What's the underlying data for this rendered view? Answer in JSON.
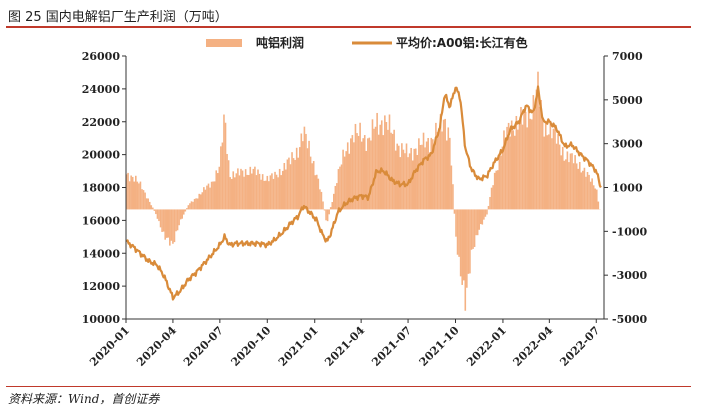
{
  "figure": {
    "title": "图 25 国内电解铝厂生产利润（万吨）",
    "source": "资料来源：Wind，首创证券"
  },
  "colors": {
    "bar": "#f4b183",
    "line": "#d98b3a",
    "rule": "#c0392b",
    "axis": "#333333"
  },
  "chart_data": {
    "type": "bar+line",
    "title": "",
    "xlabel": "",
    "ylabel": "",
    "grid": false,
    "legend_position": "top",
    "x_tick_labels": [
      "2020-01",
      "2020-04",
      "2020-07",
      "2020-10",
      "2021-01",
      "2021-04",
      "2021-07",
      "2021-10",
      "2022-01",
      "2022-04",
      "2022-07"
    ],
    "x_range": [
      "2020-01",
      "2022-07"
    ],
    "left_axis": {
      "series": "平均价:A00铝:长江有色",
      "ylim": [
        10000,
        26000
      ],
      "ticks": [
        "10000",
        "12000",
        "14000",
        "16000",
        "18000",
        "20000",
        "22000",
        "24000",
        "26000"
      ]
    },
    "right_axis": {
      "series": "吨铝利润",
      "ylim": [
        -5000,
        7000
      ],
      "ticks": [
        "-5000",
        "-3000",
        "-1000",
        "1000",
        "3000",
        "5000",
        "7000"
      ]
    },
    "series": [
      {
        "name": "吨铝利润",
        "kind": "bar",
        "axis": "right",
        "points": [
          [
            "2020-01-02",
            1600
          ],
          [
            "2020-01-15",
            1500
          ],
          [
            "2020-02-01",
            1000
          ],
          [
            "2020-02-15",
            400
          ],
          [
            "2020-03-01",
            -300
          ],
          [
            "2020-03-15",
            -1300
          ],
          [
            "2020-04-01",
            -1500
          ],
          [
            "2020-04-15",
            -600
          ],
          [
            "2020-05-01",
            200
          ],
          [
            "2020-05-15",
            500
          ],
          [
            "2020-06-01",
            900
          ],
          [
            "2020-06-15",
            1200
          ],
          [
            "2020-07-01",
            2000
          ],
          [
            "2020-07-10",
            4200
          ],
          [
            "2020-07-20",
            1600
          ],
          [
            "2020-08-01",
            1600
          ],
          [
            "2020-08-15",
            1700
          ],
          [
            "2020-09-01",
            1800
          ],
          [
            "2020-09-15",
            1600
          ],
          [
            "2020-10-01",
            1400
          ],
          [
            "2020-10-15",
            1500
          ],
          [
            "2020-11-01",
            1900
          ],
          [
            "2020-11-15",
            2200
          ],
          [
            "2020-12-01",
            2800
          ],
          [
            "2020-12-10",
            3500
          ],
          [
            "2020-12-25",
            2500
          ],
          [
            "2021-01-05",
            1600
          ],
          [
            "2021-01-15",
            600
          ],
          [
            "2021-01-25",
            -700
          ],
          [
            "2021-02-01",
            100
          ],
          [
            "2021-02-15",
            1500
          ],
          [
            "2021-03-01",
            2800
          ],
          [
            "2021-03-15",
            3200
          ],
          [
            "2021-04-01",
            3600
          ],
          [
            "2021-04-15",
            3000
          ],
          [
            "2021-05-01",
            4000
          ],
          [
            "2021-05-15",
            4000
          ],
          [
            "2021-06-01",
            3500
          ],
          [
            "2021-06-15",
            2800
          ],
          [
            "2021-07-01",
            2500
          ],
          [
            "2021-07-15",
            2800
          ],
          [
            "2021-08-01",
            3000
          ],
          [
            "2021-08-15",
            3200
          ],
          [
            "2021-09-01",
            3700
          ],
          [
            "2021-09-10",
            4100
          ],
          [
            "2021-09-20",
            3400
          ],
          [
            "2021-10-01",
            -1000
          ],
          [
            "2021-10-10",
            -2800
          ],
          [
            "2021-10-20",
            -4400
          ],
          [
            "2021-11-01",
            -1900
          ],
          [
            "2021-11-15",
            -1000
          ],
          [
            "2021-12-01",
            -200
          ],
          [
            "2021-12-15",
            1500
          ],
          [
            "2022-01-01",
            3000
          ],
          [
            "2022-01-15",
            3800
          ],
          [
            "2022-02-01",
            4000
          ],
          [
            "2022-02-15",
            4200
          ],
          [
            "2022-03-01",
            4800
          ],
          [
            "2022-03-10",
            5500
          ],
          [
            "2022-03-20",
            3800
          ],
          [
            "2022-04-01",
            3800
          ],
          [
            "2022-04-15",
            3200
          ],
          [
            "2022-05-01",
            2500
          ],
          [
            "2022-05-15",
            2300
          ],
          [
            "2022-06-01",
            2000
          ],
          [
            "2022-06-15",
            1500
          ],
          [
            "2022-07-01",
            1000
          ],
          [
            "2022-07-10",
            -300
          ]
        ]
      },
      {
        "name": "平均价:A00铝:长江有色",
        "kind": "line",
        "axis": "left",
        "points": [
          [
            "2020-01-02",
            14700
          ],
          [
            "2020-01-15",
            14400
          ],
          [
            "2020-02-01",
            13900
          ],
          [
            "2020-02-15",
            13500
          ],
          [
            "2020-03-01",
            13300
          ],
          [
            "2020-03-15",
            12600
          ],
          [
            "2020-04-01",
            11300
          ],
          [
            "2020-04-15",
            11700
          ],
          [
            "2020-05-01",
            12400
          ],
          [
            "2020-05-15",
            12800
          ],
          [
            "2020-06-01",
            13400
          ],
          [
            "2020-06-15",
            13900
          ],
          [
            "2020-07-01",
            14500
          ],
          [
            "2020-07-10",
            15000
          ],
          [
            "2020-07-20",
            14500
          ],
          [
            "2020-08-01",
            14600
          ],
          [
            "2020-08-15",
            14600
          ],
          [
            "2020-09-01",
            14600
          ],
          [
            "2020-09-15",
            14600
          ],
          [
            "2020-10-01",
            14500
          ],
          [
            "2020-10-15",
            14800
          ],
          [
            "2020-11-01",
            15300
          ],
          [
            "2020-11-15",
            15800
          ],
          [
            "2020-12-01",
            16300
          ],
          [
            "2020-12-10",
            16900
          ],
          [
            "2020-12-25",
            16400
          ],
          [
            "2021-01-05",
            16000
          ],
          [
            "2021-01-15",
            15200
          ],
          [
            "2021-01-25",
            14700
          ],
          [
            "2021-02-01",
            15200
          ],
          [
            "2021-02-15",
            16500
          ],
          [
            "2021-03-01",
            17000
          ],
          [
            "2021-03-15",
            17300
          ],
          [
            "2021-04-01",
            17500
          ],
          [
            "2021-04-15",
            17400
          ],
          [
            "2021-05-01",
            19000
          ],
          [
            "2021-05-15",
            19000
          ],
          [
            "2021-06-01",
            18400
          ],
          [
            "2021-06-15",
            18200
          ],
          [
            "2021-07-01",
            18200
          ],
          [
            "2021-07-15",
            19000
          ],
          [
            "2021-08-01",
            19700
          ],
          [
            "2021-08-15",
            20000
          ],
          [
            "2021-09-01",
            21700
          ],
          [
            "2021-09-10",
            23700
          ],
          [
            "2021-09-20",
            22900
          ],
          [
            "2021-10-01",
            24100
          ],
          [
            "2021-10-10",
            23500
          ],
          [
            "2021-10-20",
            20400
          ],
          [
            "2021-11-01",
            19100
          ],
          [
            "2021-11-15",
            18500
          ],
          [
            "2021-12-01",
            18700
          ],
          [
            "2021-12-15",
            19500
          ],
          [
            "2022-01-01",
            20300
          ],
          [
            "2022-01-15",
            21500
          ],
          [
            "2022-02-01",
            22000
          ],
          [
            "2022-02-15",
            23000
          ],
          [
            "2022-03-01",
            22500
          ],
          [
            "2022-03-10",
            24000
          ],
          [
            "2022-03-20",
            22000
          ],
          [
            "2022-04-01",
            22000
          ],
          [
            "2022-04-15",
            21600
          ],
          [
            "2022-05-01",
            20500
          ],
          [
            "2022-05-15",
            20600
          ],
          [
            "2022-06-01",
            20000
          ],
          [
            "2022-06-15",
            19600
          ],
          [
            "2022-07-01",
            19000
          ],
          [
            "2022-07-10",
            18000
          ]
        ]
      }
    ]
  }
}
